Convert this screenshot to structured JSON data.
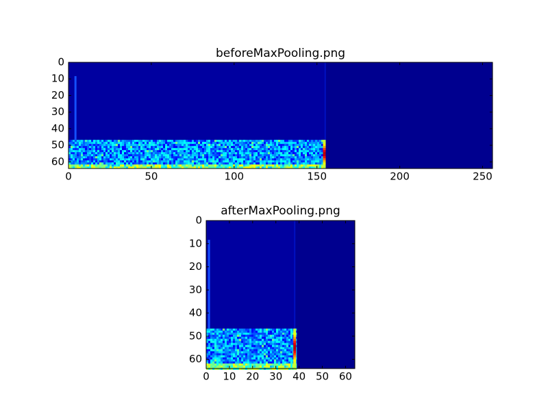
{
  "chart_data": [
    {
      "type": "image",
      "title": "beforeMaxPooling.png",
      "xlim": [
        0,
        256
      ],
      "xticks": [
        0,
        50,
        100,
        150,
        200,
        250
      ],
      "ylim": [
        0,
        64
      ],
      "yticks": [
        0,
        10,
        20,
        30,
        40,
        50,
        60
      ],
      "y_inverted": true
    },
    {
      "type": "image",
      "title": "afterMaxPooling.png",
      "xlim": [
        0,
        64
      ],
      "xticks": [
        0,
        10,
        20,
        30,
        40,
        50,
        60
      ],
      "ylim": [
        0,
        64
      ],
      "yticks": [
        0,
        10,
        20,
        30,
        40,
        50,
        60
      ],
      "y_inverted": true
    }
  ]
}
